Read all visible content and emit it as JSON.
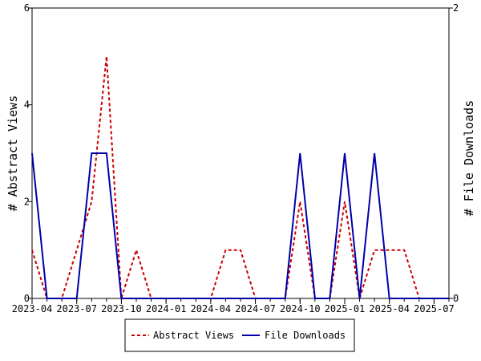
{
  "chart_data": {
    "type": "line",
    "title": "",
    "xlabel": "",
    "ylabel": "# Abstract Views",
    "y2label": "# File Downloads",
    "x": [
      "2023-04",
      "2023-05",
      "2023-06",
      "2023-07",
      "2023-08",
      "2023-09",
      "2023-10",
      "2023-11",
      "2023-12",
      "2024-01",
      "2024-02",
      "2024-03",
      "2024-04",
      "2024-05",
      "2024-06",
      "2024-07",
      "2024-08",
      "2024-09",
      "2024-10",
      "2024-11",
      "2024-12",
      "2025-01",
      "2025-02",
      "2025-03",
      "2025-04",
      "2025-05",
      "2025-06",
      "2025-07",
      "2025-08"
    ],
    "x_ticks": [
      "2023-04",
      "2023-07",
      "2023-10",
      "2024-01",
      "2024-04",
      "2024-07",
      "2024-10",
      "2025-01",
      "2025-04",
      "2025-07"
    ],
    "ylim": [
      0,
      6
    ],
    "y_ticks": [
      "0",
      "2",
      "4",
      "6"
    ],
    "y2lim": [
      0,
      2
    ],
    "y2_ticks": [
      "0",
      "2"
    ],
    "grid": false,
    "legend_position": "bottom-center",
    "series": [
      {
        "name": "Abstract Views",
        "axis": "left",
        "color": "#cc0000",
        "style": "dashed",
        "values": [
          1,
          0,
          0,
          1,
          2,
          5,
          0,
          1,
          0,
          0,
          0,
          0,
          0,
          1,
          1,
          0,
          0,
          0,
          2,
          0,
          0,
          2,
          0,
          1,
          1,
          1,
          0,
          0,
          0
        ]
      },
      {
        "name": "File Downloads",
        "axis": "right",
        "color": "#0000aa",
        "style": "solid",
        "values": [
          1,
          0,
          0,
          0,
          1,
          1,
          0,
          0,
          0,
          0,
          0,
          0,
          0,
          0,
          0,
          0,
          0,
          0,
          1,
          0,
          0,
          1,
          0,
          1,
          0,
          0,
          0,
          0,
          0
        ]
      }
    ]
  }
}
